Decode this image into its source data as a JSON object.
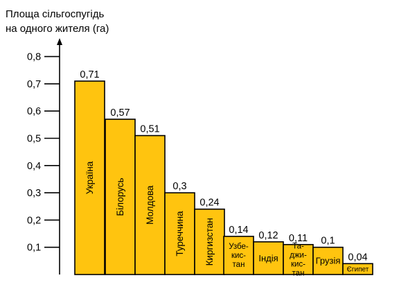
{
  "chart_data": {
    "type": "bar",
    "ylabel": [
      "Площа сільгоспугідь",
      "на одного жителя (га)"
    ],
    "categories": [
      [
        "Україна"
      ],
      [
        "Білорусь"
      ],
      [
        "Молдова"
      ],
      [
        "Туреччина"
      ],
      [
        "Киргизстан"
      ],
      [
        "Узбе-",
        "кис-",
        "тан"
      ],
      [
        "Індія"
      ],
      [
        "Та-",
        "джи-",
        "кис-",
        "тан"
      ],
      [
        "Грузія"
      ],
      [
        "Єгипет"
      ]
    ],
    "values": [
      0.71,
      0.57,
      0.51,
      0.3,
      0.24,
      0.14,
      0.12,
      0.11,
      0.1,
      0.04
    ],
    "value_labels": [
      "0,71",
      "0,57",
      "0,51",
      "0,3",
      "0,24",
      "0,14",
      "0,12",
      "0,11",
      "0,1",
      "0,04"
    ],
    "yticks": [
      0.1,
      0.2,
      0.3,
      0.4,
      0.5,
      0.6,
      0.7,
      0.8
    ],
    "ytick_labels": [
      "0,1",
      "0,2",
      "0,3",
      "0,4",
      "0,5",
      "0,6",
      "0,7",
      "0,8"
    ],
    "ylim": [
      0,
      0.8
    ],
    "grid": false,
    "colors": {
      "bar": "#FFC40F",
      "stroke": "#000000"
    }
  }
}
